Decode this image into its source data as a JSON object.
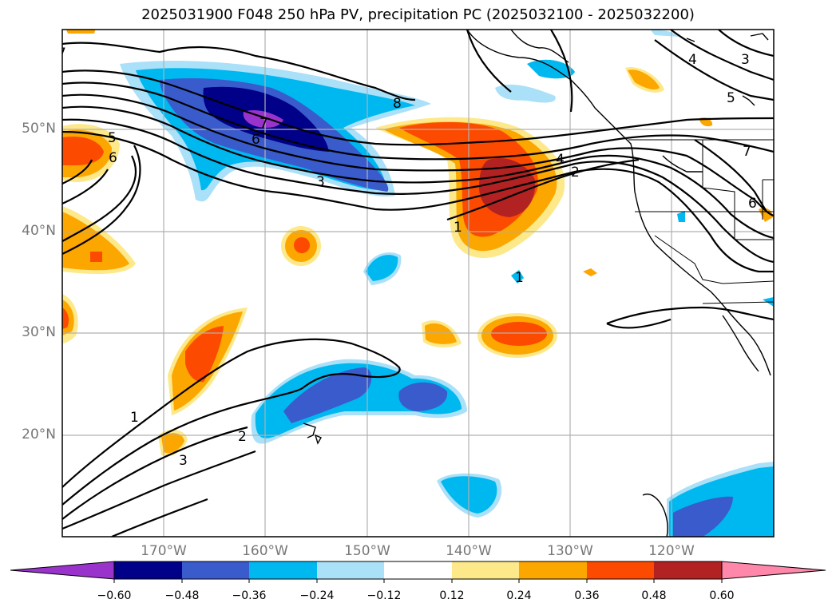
{
  "title": "2025031900 F048 250 hPa PV, precipitation PC (2025032100 - 2025032200)",
  "lat_labels": [
    "50°N",
    "40°N",
    "30°N",
    "20°N"
  ],
  "lon_labels": [
    "170°W",
    "160°W",
    "150°W",
    "140°W",
    "130°W",
    "120°W"
  ],
  "colorbar": {
    "ticks": [
      "−0.60",
      "−0.48",
      "−0.36",
      "−0.24",
      "−0.12",
      "0.12",
      "0.24",
      "0.36",
      "0.48",
      "0.60"
    ],
    "colors": [
      "#9933cc",
      "#000088",
      "#3a5bcc",
      "#00b8f0",
      "#aae0f8",
      "#ffffff",
      "#fde88a",
      "#fca600",
      "#fc4a00",
      "#b22222",
      "#ff88aa"
    ]
  },
  "contour_labels": [
    "7",
    "5",
    "6",
    "8",
    "7",
    "6",
    "3",
    "4",
    "2",
    "1",
    "4",
    "5",
    "3",
    "7",
    "6",
    "1",
    "2",
    "3",
    "1"
  ],
  "colors": {
    "strong_negative": "#000088",
    "negative": "#3a5bcc",
    "weak_negative": "#00b8f0",
    "weak_positive": "#fca600",
    "positive": "#fc4a00",
    "strong_positive": "#b22222",
    "purple": "#9933cc",
    "light_yellow": "#fde88a"
  }
}
